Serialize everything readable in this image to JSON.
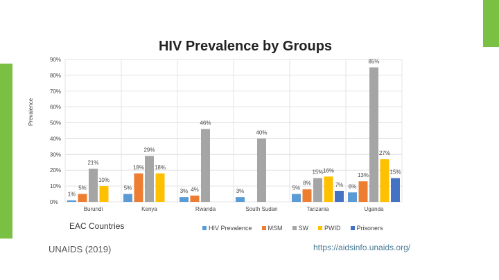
{
  "title": "HIV Prevalence by Groups",
  "x_title": "EAC Countries",
  "source": "UNAIDS (2019)",
  "url": "https://aidsinfo.unaids.org/",
  "accent_color": "#7ac143",
  "chart_data": {
    "type": "bar",
    "title": "HIV Prevalence by Groups",
    "xlabel": "",
    "ylabel": "Prevalence",
    "ylim": [
      0,
      90
    ],
    "yticks": [
      "0%",
      "10%",
      "20%",
      "30%",
      "40%",
      "50%",
      "60%",
      "70%",
      "80%",
      "90%"
    ],
    "grid": true,
    "legend": "bottom",
    "categories": [
      "Burundi",
      "Kenya",
      "Rwanda",
      "South Sudan",
      "Tanzania",
      "Uganda"
    ],
    "series": [
      {
        "name": "HIV Prevalence",
        "color": "#5b9bd5",
        "values": [
          1,
          5,
          3,
          3,
          5,
          6
        ]
      },
      {
        "name": "MSM",
        "color": "#ed7d31",
        "values": [
          5,
          18,
          4,
          null,
          8,
          13
        ]
      },
      {
        "name": "SW",
        "color": "#a5a5a5",
        "values": [
          21,
          29,
          46,
          40,
          15,
          85
        ]
      },
      {
        "name": "PWID",
        "color": "#ffc000",
        "values": [
          10,
          18,
          null,
          null,
          16,
          27
        ]
      },
      {
        "name": "Prisoners",
        "color": "#4472c4",
        "values": [
          null,
          null,
          null,
          null,
          7,
          15
        ]
      }
    ]
  }
}
